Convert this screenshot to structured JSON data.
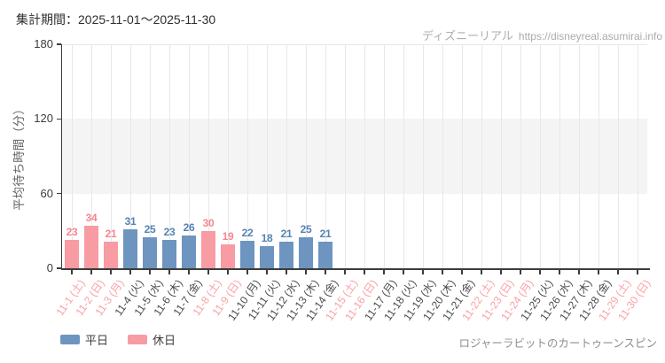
{
  "page": {
    "title": "集計期間：2025-11-01～2025-11-30",
    "watermark": {
      "site_name": "ディズニーリアル",
      "site_url": "https://disneyreal.asumirai.info"
    },
    "attraction_name": "ロジャーラビットのカートゥーンスピン"
  },
  "legend": {
    "items": [
      {
        "key": "weekday",
        "label": "平日"
      },
      {
        "key": "holiday",
        "label": "休日"
      }
    ]
  },
  "chart_data": {
    "type": "bar",
    "title": "",
    "xlabel": "",
    "ylabel": "平均待ち時間（分）",
    "ylim": [
      0,
      180
    ],
    "yticks": [
      0,
      60,
      120,
      180
    ],
    "shaded_band": [
      60,
      120
    ],
    "grid": true,
    "legend_position": "bottom-left",
    "unit": "分",
    "days": [
      {
        "label": "11-1 (土)",
        "type": "holiday",
        "value": 23
      },
      {
        "label": "11-2 (日)",
        "type": "holiday",
        "value": 34
      },
      {
        "label": "11-3 (月)",
        "type": "holiday",
        "value": 21
      },
      {
        "label": "11-4 (火)",
        "type": "weekday",
        "value": 31
      },
      {
        "label": "11-5 (水)",
        "type": "weekday",
        "value": 25
      },
      {
        "label": "11-6 (木)",
        "type": "weekday",
        "value": 23
      },
      {
        "label": "11-7 (金)",
        "type": "weekday",
        "value": 26
      },
      {
        "label": "11-8 (土)",
        "type": "holiday",
        "value": 30
      },
      {
        "label": "11-9 (日)",
        "type": "holiday",
        "value": 19
      },
      {
        "label": "11-10 (月)",
        "type": "weekday",
        "value": 22
      },
      {
        "label": "11-11 (火)",
        "type": "weekday",
        "value": 18
      },
      {
        "label": "11-12 (水)",
        "type": "weekday",
        "value": 21
      },
      {
        "label": "11-13 (木)",
        "type": "weekday",
        "value": 25
      },
      {
        "label": "11-14 (金)",
        "type": "weekday",
        "value": 21
      },
      {
        "label": "11-15 (土)",
        "type": "holiday",
        "value": null
      },
      {
        "label": "11-16 (日)",
        "type": "holiday",
        "value": null
      },
      {
        "label": "11-17 (月)",
        "type": "weekday",
        "value": null
      },
      {
        "label": "11-18 (火)",
        "type": "weekday",
        "value": null
      },
      {
        "label": "11-19 (水)",
        "type": "weekday",
        "value": null
      },
      {
        "label": "11-20 (木)",
        "type": "weekday",
        "value": null
      },
      {
        "label": "11-21 (金)",
        "type": "weekday",
        "value": null
      },
      {
        "label": "11-22 (土)",
        "type": "holiday",
        "value": null
      },
      {
        "label": "11-23 (日)",
        "type": "holiday",
        "value": null
      },
      {
        "label": "11-24 (月)",
        "type": "holiday",
        "value": null
      },
      {
        "label": "11-25 (火)",
        "type": "weekday",
        "value": null
      },
      {
        "label": "11-26 (水)",
        "type": "weekday",
        "value": null
      },
      {
        "label": "11-27 (木)",
        "type": "weekday",
        "value": null
      },
      {
        "label": "11-28 (金)",
        "type": "weekday",
        "value": null
      },
      {
        "label": "11-29 (土)",
        "type": "holiday",
        "value": null
      },
      {
        "label": "11-30 (日)",
        "type": "holiday",
        "value": null
      }
    ],
    "colors": {
      "weekday_bar": "#6e94c0",
      "holiday_bar": "#f89ba2",
      "weekday_value_text": "#5583b3",
      "holiday_value_text": "#f8858e",
      "weekday_axis_text": "#4b4b4b",
      "holiday_axis_text": "#f9a0a6",
      "grid": "#e8e8e8",
      "band": "#f4f4f4",
      "axis": "#3c3c3c"
    }
  }
}
